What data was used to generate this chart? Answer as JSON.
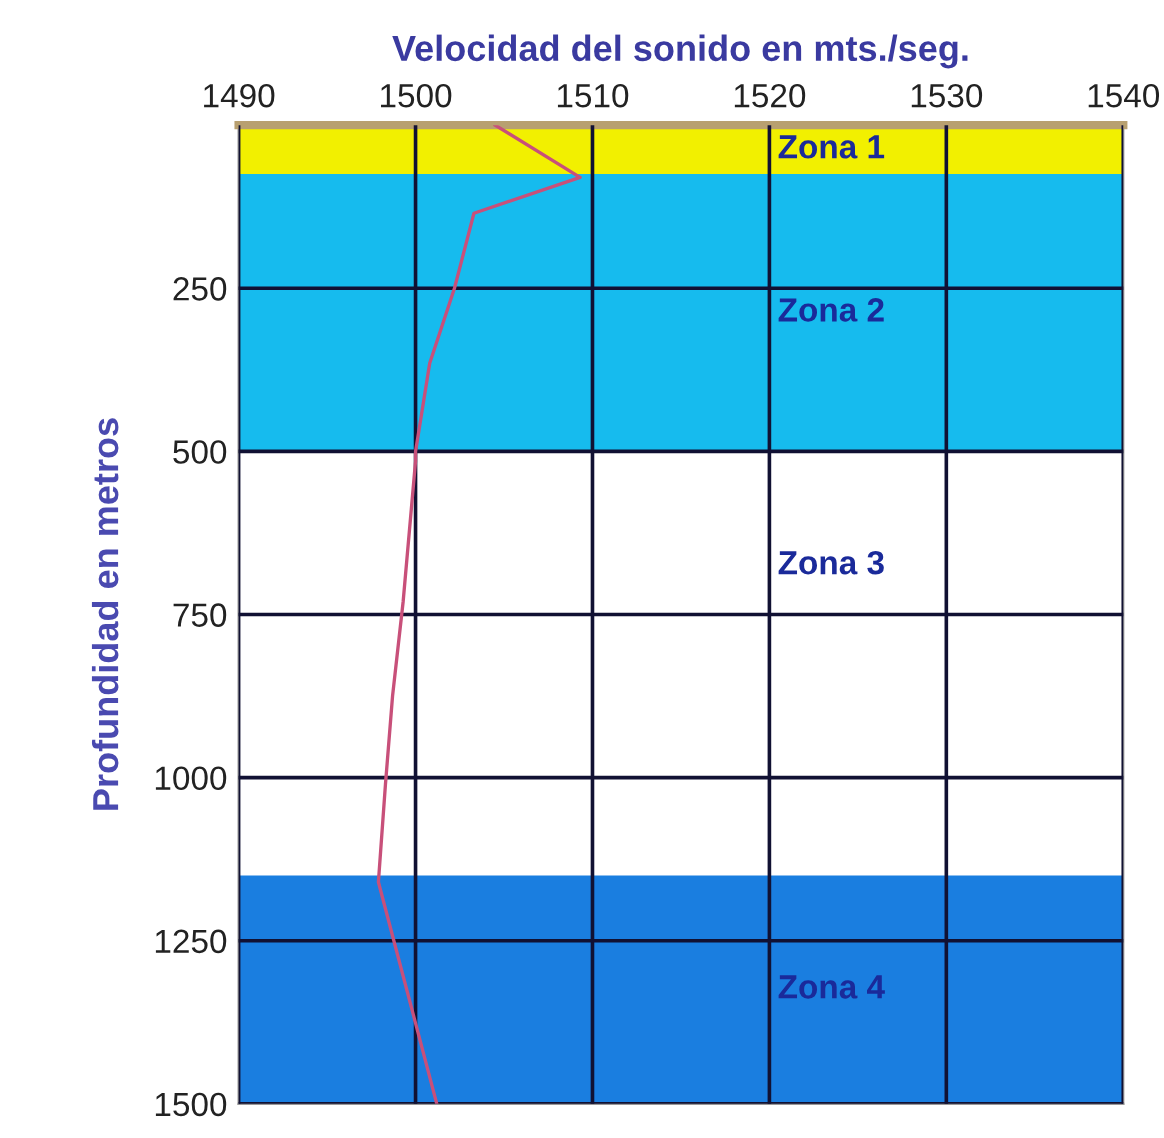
{
  "chart_data": {
    "type": "line",
    "xlabel": "Velocidad del sonido en mts./seg.",
    "ylabel": "Profundidad en metros",
    "x": [
      1504.5,
      1509.3,
      1503.3,
      1502.2,
      1500.8,
      1500,
      1500,
      1499.3,
      1498.7,
      1498.3,
      1497.9,
      1501.2
    ],
    "series": [
      {
        "color": "#c8507a",
        "values": [
          0,
          80,
          135,
          250,
          365,
          500,
          515,
          730,
          875,
          1010,
          1160,
          1500
        ]
      }
    ],
    "xlim": [
      1490,
      1540
    ],
    "xticks": [
      1490,
      1500,
      1510,
      1520,
      1530,
      1540
    ],
    "ylim": [
      1500,
      0
    ],
    "yticks": [
      250,
      500,
      750,
      1000,
      1250,
      1500
    ],
    "annotations": [
      "Zona 3"
    ],
    "grid": true,
    "marker": "none",
    "line_style": "solid",
    "bands": [
      {
        "axis": "y",
        "from": 0,
        "to": 75,
        "label": "Zona 1",
        "color": "#f2f000"
      },
      {
        "axis": "y",
        "from": 75,
        "to": 500,
        "label": "Zona 2",
        "color": "#16bbee"
      },
      {
        "axis": "y",
        "from": 1150,
        "to": 1500,
        "label": "Zona 4",
        "color": "#1a7ee0"
      }
    ]
  }
}
